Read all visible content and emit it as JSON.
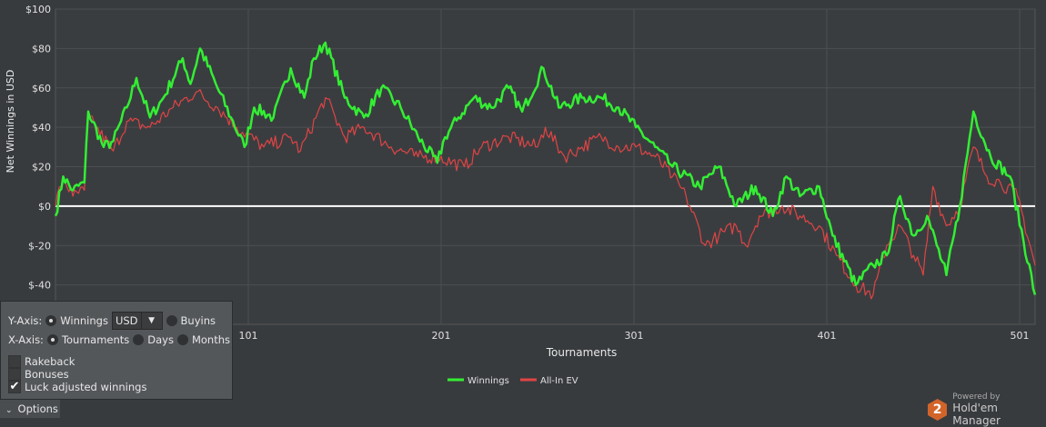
{
  "chart_data": {
    "type": "line",
    "title": "",
    "xlabel": "Tournaments",
    "ylabel": "Net Winnings in USD",
    "xlim": [
      1,
      509
    ],
    "ylim": [
      -60,
      100
    ],
    "xticks": [
      101,
      201,
      301,
      401,
      501
    ],
    "yticks": [
      100,
      80,
      60,
      40,
      20,
      0,
      -20,
      -40
    ],
    "ytick_labels": [
      "$100",
      "$80",
      "$60",
      "$40",
      "$20",
      "$0",
      "$-20",
      "$-40"
    ],
    "grid": true,
    "legend_position": "bottom-center",
    "series": [
      {
        "name": "Winnings",
        "color": "#33ee33",
        "points": [
          [
            1,
            -5
          ],
          [
            5,
            15
          ],
          [
            10,
            8
          ],
          [
            16,
            12
          ],
          [
            18,
            48
          ],
          [
            26,
            30
          ],
          [
            31,
            33
          ],
          [
            38,
            50
          ],
          [
            43,
            65
          ],
          [
            50,
            45
          ],
          [
            57,
            55
          ],
          [
            67,
            75
          ],
          [
            71,
            62
          ],
          [
            76,
            80
          ],
          [
            85,
            60
          ],
          [
            92,
            45
          ],
          [
            99,
            30
          ],
          [
            104,
            50
          ],
          [
            114,
            45
          ],
          [
            123,
            70
          ],
          [
            130,
            55
          ],
          [
            135,
            75
          ],
          [
            141,
            83
          ],
          [
            151,
            55
          ],
          [
            161,
            45
          ],
          [
            170,
            60
          ],
          [
            180,
            50
          ],
          [
            189,
            35
          ],
          [
            199,
            22
          ],
          [
            203,
            35
          ],
          [
            210,
            45
          ],
          [
            218,
            55
          ],
          [
            227,
            50
          ],
          [
            236,
            60
          ],
          [
            243,
            48
          ],
          [
            254,
            70
          ],
          [
            262,
            50
          ],
          [
            274,
            55
          ],
          [
            284,
            55
          ],
          [
            293,
            50
          ],
          [
            302,
            40
          ],
          [
            312,
            30
          ],
          [
            321,
            20
          ],
          [
            335,
            10
          ],
          [
            345,
            20
          ],
          [
            354,
            0
          ],
          [
            364,
            10
          ],
          [
            373,
            -5
          ],
          [
            380,
            15
          ],
          [
            387,
            5
          ],
          [
            397,
            10
          ],
          [
            404,
            -15
          ],
          [
            416,
            -40
          ],
          [
            425,
            -30
          ],
          [
            432,
            -25
          ],
          [
            439,
            5
          ],
          [
            446,
            -15
          ],
          [
            453,
            -5
          ],
          [
            463,
            -35
          ],
          [
            470,
            0
          ],
          [
            477,
            48
          ],
          [
            486,
            25
          ],
          [
            496,
            15
          ],
          [
            509,
            -45
          ]
        ]
      },
      {
        "name": "All-In EV",
        "color": "#e04444",
        "points": [
          [
            1,
            0
          ],
          [
            5,
            15
          ],
          [
            10,
            5
          ],
          [
            16,
            8
          ],
          [
            18,
            45
          ],
          [
            31,
            28
          ],
          [
            38,
            43
          ],
          [
            50,
            40
          ],
          [
            62,
            50
          ],
          [
            74,
            58
          ],
          [
            85,
            50
          ],
          [
            95,
            40
          ],
          [
            109,
            30
          ],
          [
            123,
            35
          ],
          [
            128,
            28
          ],
          [
            141,
            55
          ],
          [
            151,
            35
          ],
          [
            161,
            40
          ],
          [
            175,
            30
          ],
          [
            189,
            25
          ],
          [
            199,
            25
          ],
          [
            213,
            20
          ],
          [
            222,
            30
          ],
          [
            236,
            35
          ],
          [
            251,
            30
          ],
          [
            255,
            40
          ],
          [
            265,
            25
          ],
          [
            274,
            30
          ],
          [
            284,
            35
          ],
          [
            293,
            30
          ],
          [
            302,
            30
          ],
          [
            312,
            25
          ],
          [
            321,
            15
          ],
          [
            328,
            5
          ],
          [
            338,
            -20
          ],
          [
            345,
            -15
          ],
          [
            354,
            -10
          ],
          [
            359,
            -20
          ],
          [
            366,
            -5
          ],
          [
            378,
            0
          ],
          [
            387,
            -5
          ],
          [
            397,
            -10
          ],
          [
            406,
            -25
          ],
          [
            416,
            -40
          ],
          [
            425,
            -45
          ],
          [
            432,
            -20
          ],
          [
            439,
            -10
          ],
          [
            446,
            -25
          ],
          [
            451,
            -35
          ],
          [
            456,
            10
          ],
          [
            463,
            -10
          ],
          [
            470,
            0
          ],
          [
            477,
            30
          ],
          [
            484,
            15
          ],
          [
            491,
            12
          ],
          [
            500,
            5
          ],
          [
            509,
            -30
          ]
        ]
      }
    ]
  },
  "options": {
    "yaxis_label": "Y-Axis:",
    "winnings": "Winnings",
    "currency": "USD",
    "buyins": "Buyins",
    "xaxis_label": "X-Axis:",
    "tournaments": "Tournaments",
    "days": "Days",
    "months": "Months",
    "rakeback": "Rakeback",
    "bonuses": "Bonuses",
    "luck": "Luck adjusted winnings",
    "luck_checked": true,
    "toggle": "Options"
  },
  "brand": {
    "powered": "Powered by",
    "name": "Hold'em Manager",
    "logo": "2"
  }
}
